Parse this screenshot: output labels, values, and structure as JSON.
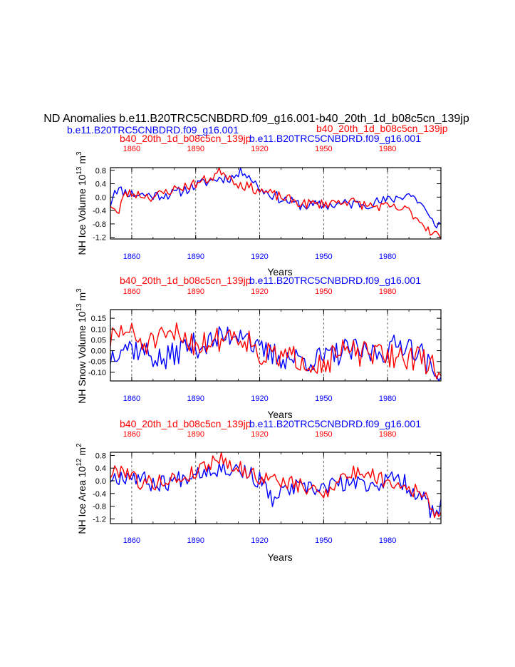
{
  "title": "ND Anomalies b.e11.B20TRC5CNBDRD.f09_g16.001-b40_20th_1d_b08c5cn_139jp",
  "subtitle_left": "b.e11.B20TRC5CNBDRD.f09_g16.001",
  "subtitle_right": "b40_20th_1d_b08c5cn_139jp",
  "colors": {
    "blue": "#0000ff",
    "red": "#ff0000",
    "axis": "#000000",
    "grid": "#444444"
  },
  "series_names": {
    "blue": "b.e11.B20TRC5CNBDRD.f09_g16.001",
    "red": "b40_20th_1d_b08c5cn_139jp"
  },
  "chart_data": [
    {
      "type": "line",
      "title": "",
      "top_label_left": "b40_20th_1d_b08c5cn_139jp",
      "top_label_right": "b.e11.B20TRC5CNBDRD.f09_g16.001",
      "ylabel": "NH Ice Volume 10",
      "ylabel_exp": "13",
      "ylabel_unit": " m",
      "ylabel_unit_exp": "3",
      "xlabel": "Years",
      "xlim": [
        1850,
        2005
      ],
      "ylim": [
        -1.25,
        0.88
      ],
      "yticks": [
        -1.2,
        -0.8,
        -0.4,
        0.0,
        0.4,
        0.8
      ],
      "ytick_labels": [
        "-1.2",
        "-0.8",
        "-0.4",
        "0.0",
        "0.4",
        "0.8"
      ],
      "xticks": [
        1860,
        1890,
        1920,
        1950,
        1980
      ],
      "xtick_labels": [
        "1860",
        "1890",
        "1920",
        "1950",
        "1980"
      ],
      "grid_x": [
        1860,
        1890,
        1920,
        1950,
        1980
      ],
      "series": [
        {
          "name": "b.e11.B20TRC5CNBDRD.f09_g16.001",
          "color": "#0000ff",
          "x0": 1850,
          "amp": 0.16,
          "seed": 11,
          "anchors": [
            [
              1850,
              -0.2
            ],
            [
              1852,
              0.25
            ],
            [
              1860,
              0.1
            ],
            [
              1870,
              0.05
            ],
            [
              1880,
              0.1
            ],
            [
              1890,
              0.35
            ],
            [
              1900,
              0.55
            ],
            [
              1908,
              0.6
            ],
            [
              1913,
              0.8
            ],
            [
              1920,
              0.25
            ],
            [
              1930,
              -0.05
            ],
            [
              1940,
              -0.25
            ],
            [
              1950,
              -0.25
            ],
            [
              1960,
              -0.2
            ],
            [
              1970,
              -0.2
            ],
            [
              1980,
              -0.1
            ],
            [
              1990,
              0.1
            ],
            [
              1996,
              -0.2
            ],
            [
              2000,
              -0.7
            ],
            [
              2005,
              -0.85
            ]
          ]
        },
        {
          "name": "b40_20th_1d_b08c5cn_139jp",
          "color": "#ff0000",
          "x0": 1850,
          "amp": 0.15,
          "seed": 23,
          "anchors": [
            [
              1850,
              -0.2
            ],
            [
              1854,
              -0.55
            ],
            [
              1856,
              0.1
            ],
            [
              1862,
              0.1
            ],
            [
              1870,
              0.0
            ],
            [
              1878,
              0.2
            ],
            [
              1890,
              0.4
            ],
            [
              1898,
              0.6
            ],
            [
              1902,
              0.8
            ],
            [
              1910,
              0.4
            ],
            [
              1920,
              0.2
            ],
            [
              1930,
              0.0
            ],
            [
              1940,
              -0.2
            ],
            [
              1950,
              -0.2
            ],
            [
              1960,
              -0.1
            ],
            [
              1970,
              -0.25
            ],
            [
              1980,
              -0.3
            ],
            [
              1990,
              -0.4
            ],
            [
              1995,
              -0.7
            ],
            [
              2000,
              -1.0
            ],
            [
              2005,
              -1.2
            ]
          ]
        }
      ]
    },
    {
      "type": "line",
      "title": "",
      "top_label_left": "b40_20th_1d_b08c5cn_139jp",
      "top_label_right": "b.e11.B20TRC5CNBDRD.f09_g16.001",
      "ylabel": "NH Snow Volume 10",
      "ylabel_exp": "13",
      "ylabel_unit": " m",
      "ylabel_unit_exp": "3",
      "xlabel": "Years",
      "xlim": [
        1850,
        2005
      ],
      "ylim": [
        -0.14,
        0.19
      ],
      "yticks": [
        -0.1,
        -0.05,
        0.0,
        0.05,
        0.1,
        0.15
      ],
      "ytick_labels": [
        "-0.10",
        "-0.05",
        "0.00",
        "0.05",
        "0.10",
        "0.15"
      ],
      "xticks": [
        1860,
        1890,
        1920,
        1950,
        1980
      ],
      "xtick_labels": [
        "1860",
        "1890",
        "1920",
        "1950",
        "1980"
      ],
      "grid_x": [
        1860,
        1890,
        1920,
        1950,
        1980
      ],
      "series": [
        {
          "name": "b.e11.B20TRC5CNBDRD.f09_g16.001",
          "color": "#0000ff",
          "x0": 1850,
          "amp": 0.06,
          "seed": 37,
          "anchors": [
            [
              1850,
              -0.03
            ],
            [
              1855,
              0.03
            ],
            [
              1865,
              0.0
            ],
            [
              1875,
              -0.05
            ],
            [
              1885,
              0.02
            ],
            [
              1895,
              0.03
            ],
            [
              1905,
              0.07
            ],
            [
              1913,
              0.1
            ],
            [
              1918,
              0.0
            ],
            [
              1930,
              -0.03
            ],
            [
              1940,
              -0.04
            ],
            [
              1950,
              -0.04
            ],
            [
              1960,
              0.0
            ],
            [
              1970,
              -0.01
            ],
            [
              1980,
              0.0
            ],
            [
              1988,
              0.04
            ],
            [
              1995,
              0.0
            ],
            [
              2002,
              -0.12
            ],
            [
              2005,
              -0.1
            ]
          ]
        },
        {
          "name": "b40_20th_1d_b08c5cn_139jp",
          "color": "#ff0000",
          "x0": 1850,
          "amp": 0.06,
          "seed": 51,
          "anchors": [
            [
              1850,
              0.05
            ],
            [
              1857,
              0.1
            ],
            [
              1865,
              0.03
            ],
            [
              1875,
              0.05
            ],
            [
              1882,
              0.08
            ],
            [
              1890,
              0.03
            ],
            [
              1900,
              0.05
            ],
            [
              1906,
              0.08
            ],
            [
              1915,
              0.05
            ],
            [
              1920,
              -0.02
            ],
            [
              1930,
              -0.03
            ],
            [
              1940,
              -0.04
            ],
            [
              1950,
              -0.06
            ],
            [
              1960,
              0.0
            ],
            [
              1970,
              -0.02
            ],
            [
              1980,
              -0.02
            ],
            [
              1990,
              -0.03
            ],
            [
              1998,
              -0.05
            ],
            [
              2005,
              -0.1
            ]
          ]
        }
      ]
    },
    {
      "type": "line",
      "title": "",
      "top_label_left": "b40_20th_1d_b08c5cn_139jp",
      "top_label_right": "b.e11.B20TRC5CNBDRD.f09_g16.001",
      "ylabel": "NH Ice Area 10",
      "ylabel_exp": "12",
      "ylabel_unit": " m",
      "ylabel_unit_exp": "2",
      "xlabel": "Years",
      "xlim": [
        1850,
        2005
      ],
      "ylim": [
        -1.35,
        0.9
      ],
      "yticks": [
        -1.2,
        -0.8,
        -0.4,
        0.0,
        0.4,
        0.8
      ],
      "ytick_labels": [
        "-1.2",
        "-0.8",
        "-0.4",
        "0.0",
        "0.4",
        "0.8"
      ],
      "xticks": [
        1860,
        1890,
        1920,
        1950,
        1980
      ],
      "xtick_labels": [
        "1860",
        "1890",
        "1920",
        "1950",
        "1980"
      ],
      "grid_x": [
        1860,
        1890,
        1920,
        1950,
        1980
      ],
      "series": [
        {
          "name": "b.e11.B20TRC5CNBDRD.f09_g16.001",
          "color": "#0000ff",
          "x0": 1850,
          "amp": 0.28,
          "seed": 67,
          "anchors": [
            [
              1850,
              0.1
            ],
            [
              1860,
              0.2
            ],
            [
              1870,
              -0.1
            ],
            [
              1880,
              0.0
            ],
            [
              1890,
              0.3
            ],
            [
              1900,
              0.4
            ],
            [
              1910,
              0.4
            ],
            [
              1920,
              0.0
            ],
            [
              1926,
              -0.6
            ],
            [
              1935,
              -0.2
            ],
            [
              1945,
              -0.3
            ],
            [
              1955,
              -0.1
            ],
            [
              1965,
              -0.1
            ],
            [
              1975,
              -0.1
            ],
            [
              1985,
              0.1
            ],
            [
              1992,
              -0.3
            ],
            [
              1998,
              -0.6
            ],
            [
              2002,
              -1.2
            ],
            [
              2005,
              -0.8
            ]
          ]
        },
        {
          "name": "b40_20th_1d_b08c5cn_139jp",
          "color": "#ff0000",
          "x0": 1850,
          "amp": 0.25,
          "seed": 79,
          "anchors": [
            [
              1850,
              0.2
            ],
            [
              1856,
              0.4
            ],
            [
              1865,
              -0.1
            ],
            [
              1875,
              0.0
            ],
            [
              1885,
              0.1
            ],
            [
              1895,
              0.5
            ],
            [
              1901,
              0.75
            ],
            [
              1910,
              0.4
            ],
            [
              1920,
              0.1
            ],
            [
              1930,
              0.0
            ],
            [
              1940,
              -0.2
            ],
            [
              1950,
              -0.4
            ],
            [
              1958,
              0.1
            ],
            [
              1968,
              0.3
            ],
            [
              1980,
              0.0
            ],
            [
              1990,
              -0.2
            ],
            [
              1996,
              -0.4
            ],
            [
              2001,
              -0.9
            ],
            [
              2005,
              -1.0
            ]
          ]
        }
      ]
    }
  ]
}
